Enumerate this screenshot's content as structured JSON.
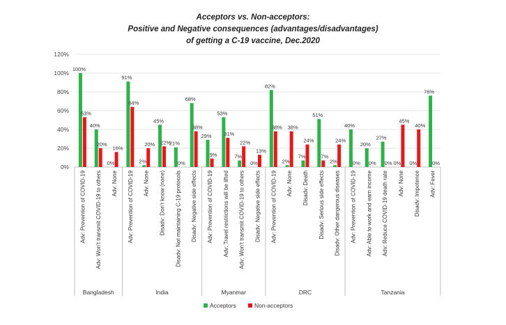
{
  "chart_data": {
    "type": "bar",
    "title_lines": [
      "Acceptors vs. Non-acceptors:",
      "Positive and Negative consequences (advantages/disadvantages)",
      "of getting a C-19 vaccine, Dec.2020"
    ],
    "ylim": [
      0,
      120
    ],
    "y_ticks": [
      "0%",
      "20%",
      "40%",
      "60%",
      "80%",
      "100%",
      "120%"
    ],
    "grid": true,
    "legend_position": "bottom",
    "colors": {
      "Acceptors": "#2db34a",
      "Non-acceptors": "#e31a1c"
    },
    "categories": [
      "Adv: Prevention of COVID-19",
      "Adv: Won't transmit COVID-19 to others",
      "Adv: None",
      "Adv: Prevention of COVID-19",
      "Adv: None",
      "Disadv: Don't know (none)",
      "Disadv: Not maintaining C-19 protocols",
      "Disadv: Negative side effects",
      "Adv: Prevention of COVID-19",
      "Adv: Travel restrictions will be lifted",
      "Adv:  Won't transmit COVID-19 to others",
      "Disadv: Negative side effects",
      "Adv: Prevention of COVID-19",
      "Adv:  None",
      "Disadv: Death",
      "Disadv:  Serious side effects",
      "Disadv: Other dangerous diseases",
      "Adv: Prevention of COVID-19",
      "Adv: Able to work and earn income",
      "Adv: Reduce COVID-19 death rate",
      "Adv:  None",
      "Disadv: Impotence",
      "Adv: Fever"
    ],
    "groups": [
      {
        "name": "Bangladesh",
        "count": 3
      },
      {
        "name": "India",
        "count": 5
      },
      {
        "name": "Myanmar",
        "count": 4
      },
      {
        "name": "DRC",
        "count": 5
      },
      {
        "name": "Tanzania",
        "count": 6
      }
    ],
    "series": [
      {
        "name": "Acceptors",
        "values": [
          100,
          40,
          0,
          91,
          2,
          45,
          21,
          68,
          29,
          53,
          7,
          0,
          82,
          2,
          7,
          51,
          2,
          40,
          20,
          27,
          0,
          0,
          76
        ],
        "labels": [
          "100%",
          "40%",
          "0%",
          "91%",
          "2%",
          "45%",
          "21%",
          "68%",
          "29%",
          "53%",
          "7%",
          "0%",
          "82%",
          "2%",
          "7%",
          "51%",
          "2%",
          "40%",
          "20%",
          "27%",
          "0%",
          "0%",
          "76%"
        ]
      },
      {
        "name": "Non-acceptors",
        "values": [
          53,
          20,
          16,
          64,
          20,
          22,
          0,
          38,
          9,
          31,
          22,
          13,
          38,
          38,
          24,
          7,
          24,
          0,
          0,
          0,
          45,
          40,
          0
        ],
        "labels": [
          "53%",
          "20%",
          "16%",
          "64%",
          "20%",
          "22%",
          "0%",
          "38%",
          "9%",
          "31%",
          "22%",
          "13%",
          "38%",
          "38%",
          "24%",
          "7%",
          "24%",
          "0%",
          "0%",
          "0%",
          "45%",
          "40%",
          "0%"
        ]
      }
    ]
  }
}
